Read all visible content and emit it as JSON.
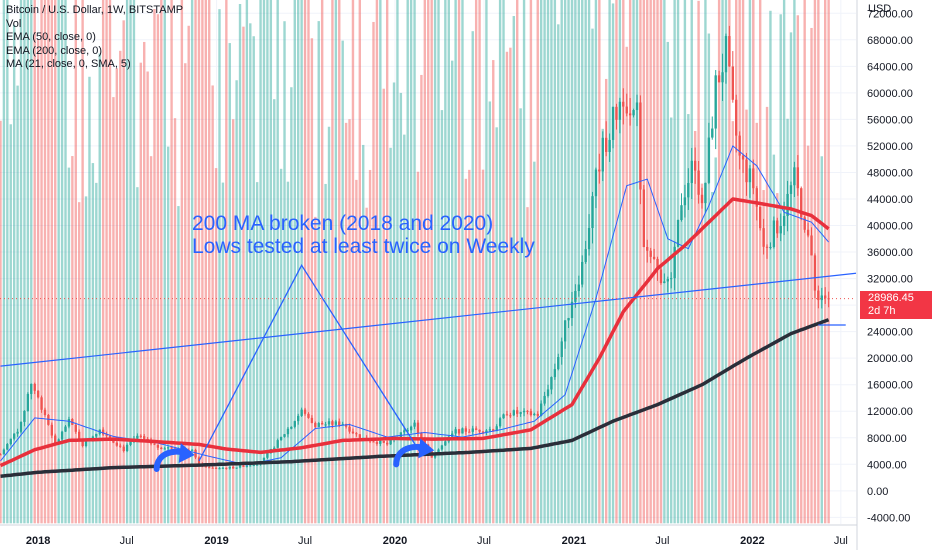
{
  "header": {
    "symbol": "Bitcoin / U.S. Dollar, 1W, BITSTAMP",
    "indicators": [
      "Vol",
      "EMA (50, close, 0)",
      "EMA (200, close, 0)",
      "MA (21, close, 0, SMA, 5)"
    ]
  },
  "price_axis": {
    "currency": "USD",
    "last_price": "28986.45",
    "countdown": "2d 7h"
  },
  "annotation": {
    "line1": "200 MA broken (2018 and 2020)",
    "line2": "Lows tested at least twice on Weekly"
  },
  "colors": {
    "up": "#26a69a",
    "down": "#ef5350",
    "ema50": "#e8303c",
    "ema200": "#2a2e39",
    "ma21": "#2962ff",
    "drawing": "#2962ff",
    "price_tag": "#f23645"
  },
  "chart_data": {
    "type": "candlestick",
    "x_axis": {
      "type": "date",
      "range": [
        "2017-10-15",
        "2022-08-01"
      ],
      "ticks": [
        {
          "label": "2018",
          "date": "2018-01-01",
          "bold": true
        },
        {
          "label": "Jul",
          "date": "2018-07-01"
        },
        {
          "label": "2019",
          "date": "2019-01-01",
          "bold": true
        },
        {
          "label": "Jul",
          "date": "2019-07-01"
        },
        {
          "label": "2020",
          "date": "2020-01-01",
          "bold": true
        },
        {
          "label": "Jul",
          "date": "2020-07-01"
        },
        {
          "label": "2021",
          "date": "2021-01-01",
          "bold": true
        },
        {
          "label": "Jul",
          "date": "2021-07-01"
        },
        {
          "label": "2022",
          "date": "2022-01-01",
          "bold": true
        },
        {
          "label": "Jul",
          "date": "2022-07-01"
        }
      ]
    },
    "y_axis": {
      "range": [
        -5000,
        74000
      ],
      "ticks": [
        "72000.00",
        "68000.00",
        "64000.00",
        "60000.00",
        "56000.00",
        "52000.00",
        "48000.00",
        "44000.00",
        "40000.00",
        "36000.00",
        "32000.00",
        "28000.00",
        "24000.00",
        "20000.00",
        "16000.00",
        "12000.00",
        "8000.00",
        "4000.00",
        "0.00",
        "-4000.00"
      ]
    },
    "price_keypoints": [
      [
        "2017-10-16",
        5500
      ],
      [
        "2017-11-27",
        10000
      ],
      [
        "2017-12-17",
        16500
      ],
      [
        "2018-01-15",
        11500
      ],
      [
        "2018-02-05",
        7000
      ],
      [
        "2018-03-05",
        10500
      ],
      [
        "2018-04-02",
        7000
      ],
      [
        "2018-05-07",
        9300
      ],
      [
        "2018-06-25",
        6200
      ],
      [
        "2018-07-23",
        8200
      ],
      [
        "2018-09-03",
        6600
      ],
      [
        "2018-11-12",
        6300
      ],
      [
        "2018-11-26",
        4000
      ],
      [
        "2018-12-17",
        3400
      ],
      [
        "2019-02-04",
        3500
      ],
      [
        "2019-04-01",
        4200
      ],
      [
        "2019-05-13",
        8000
      ],
      [
        "2019-06-24",
        12000
      ],
      [
        "2019-07-22",
        10000
      ],
      [
        "2019-09-16",
        10200
      ],
      [
        "2019-10-21",
        8000
      ],
      [
        "2019-12-16",
        7000
      ],
      [
        "2020-02-10",
        10000
      ],
      [
        "2020-03-16",
        5200
      ],
      [
        "2020-05-04",
        9000
      ],
      [
        "2020-07-20",
        9300
      ],
      [
        "2020-08-17",
        11800
      ],
      [
        "2020-10-19",
        11500
      ],
      [
        "2020-11-23",
        18500
      ],
      [
        "2020-12-28",
        29000
      ],
      [
        "2021-01-18",
        34000
      ],
      [
        "2021-02-22",
        50000
      ],
      [
        "2021-04-12",
        60000
      ],
      [
        "2021-05-10",
        57000
      ],
      [
        "2021-05-24",
        36000
      ],
      [
        "2021-06-21",
        33000
      ],
      [
        "2021-07-19",
        31000
      ],
      [
        "2021-08-09",
        44000
      ],
      [
        "2021-09-06",
        50000
      ],
      [
        "2021-09-20",
        42000
      ],
      [
        "2021-10-18",
        61000
      ],
      [
        "2021-11-08",
        66000
      ],
      [
        "2021-11-22",
        57000
      ],
      [
        "2021-12-06",
        50000
      ],
      [
        "2022-01-03",
        46000
      ],
      [
        "2022-01-24",
        36500
      ],
      [
        "2022-02-28",
        41000
      ],
      [
        "2022-03-28",
        47000
      ],
      [
        "2022-04-25",
        38500
      ],
      [
        "2022-05-09",
        30000
      ],
      [
        "2022-06-06",
        29000
      ]
    ],
    "ema50_keypoints": [
      [
        "2017-10-16",
        3800
      ],
      [
        "2017-12-25",
        6200
      ],
      [
        "2018-03-05",
        7600
      ],
      [
        "2018-06-04",
        7800
      ],
      [
        "2018-09-03",
        7400
      ],
      [
        "2018-11-26",
        7000
      ],
      [
        "2019-01-21",
        6300
      ],
      [
        "2019-04-01",
        5800
      ],
      [
        "2019-06-24",
        6500
      ],
      [
        "2019-09-16",
        7600
      ],
      [
        "2019-12-30",
        7900
      ],
      [
        "2020-03-16",
        7800
      ],
      [
        "2020-06-29",
        7900
      ],
      [
        "2020-10-05",
        9200
      ],
      [
        "2020-12-28",
        13000
      ],
      [
        "2021-02-22",
        20000
      ],
      [
        "2021-04-12",
        27000
      ],
      [
        "2021-06-21",
        33500
      ],
      [
        "2021-08-16",
        37000
      ],
      [
        "2021-10-18",
        41500
      ],
      [
        "2021-11-22",
        44000
      ],
      [
        "2022-01-03",
        43500
      ],
      [
        "2022-03-21",
        42500
      ],
      [
        "2022-05-02",
        41500
      ],
      [
        "2022-06-06",
        39500
      ]
    ],
    "ema200_keypoints": [
      [
        "2017-10-16",
        2200
      ],
      [
        "2018-01-01",
        2800
      ],
      [
        "2018-06-04",
        3500
      ],
      [
        "2018-12-03",
        3900
      ],
      [
        "2019-06-03",
        4400
      ],
      [
        "2019-12-02",
        5200
      ],
      [
        "2020-06-01",
        5800
      ],
      [
        "2020-10-05",
        6400
      ],
      [
        "2020-12-28",
        7600
      ],
      [
        "2021-03-22",
        10500
      ],
      [
        "2021-06-21",
        13000
      ],
      [
        "2021-09-20",
        16000
      ],
      [
        "2021-12-20",
        20000
      ],
      [
        "2022-03-21",
        23700
      ],
      [
        "2022-06-06",
        25800
      ]
    ],
    "ma21_keypoints": [
      [
        "2017-10-16",
        4500
      ],
      [
        "2017-12-25",
        11000
      ],
      [
        "2018-03-05",
        10500
      ],
      [
        "2018-06-04",
        8200
      ],
      [
        "2018-09-03",
        7200
      ],
      [
        "2018-12-17",
        5200
      ],
      [
        "2019-03-04",
        3900
      ],
      [
        "2019-05-13",
        5000
      ],
      [
        "2019-07-22",
        9400
      ],
      [
        "2019-09-30",
        10000
      ],
      [
        "2019-12-16",
        8100
      ],
      [
        "2020-03-02",
        8800
      ],
      [
        "2020-05-18",
        8100
      ],
      [
        "2020-08-03",
        9200
      ],
      [
        "2020-10-12",
        10500
      ],
      [
        "2020-12-14",
        14500
      ],
      [
        "2021-02-15",
        29000
      ],
      [
        "2021-04-19",
        46000
      ],
      [
        "2021-05-31",
        47000
      ],
      [
        "2021-07-12",
        38000
      ],
      [
        "2021-08-23",
        36500
      ],
      [
        "2021-10-04",
        43000
      ],
      [
        "2021-11-22",
        52000
      ],
      [
        "2022-01-10",
        49000
      ],
      [
        "2022-03-07",
        42000
      ],
      [
        "2022-05-02",
        40500
      ],
      [
        "2022-06-06",
        37500
      ]
    ],
    "volume_peaks": [
      [
        "2017-12-11",
        3000
      ],
      [
        "2018-02-05",
        2600
      ],
      [
        "2018-11-19",
        2200
      ],
      [
        "2019-06-24",
        2800
      ],
      [
        "2020-03-16",
        3200
      ],
      [
        "2021-01-11",
        5100
      ],
      [
        "2021-05-17",
        6000
      ],
      [
        "2021-06-21",
        3000
      ],
      [
        "2022-05-09",
        1500
      ]
    ],
    "drawings": {
      "trendline": [
        [
          "2017-10-16",
          18800
        ],
        [
          "2022-08-01",
          32800
        ]
      ],
      "support_line": [
        [
          "2022-05-16",
          25000
        ],
        [
          "2022-07-11",
          25000
        ]
      ],
      "triangle": [
        [
          "2018-11-26",
          4500
        ],
        [
          "2019-06-24",
          34000
        ],
        [
          "2020-02-24",
          5500
        ]
      ]
    },
    "last_price": 28986.45
  }
}
